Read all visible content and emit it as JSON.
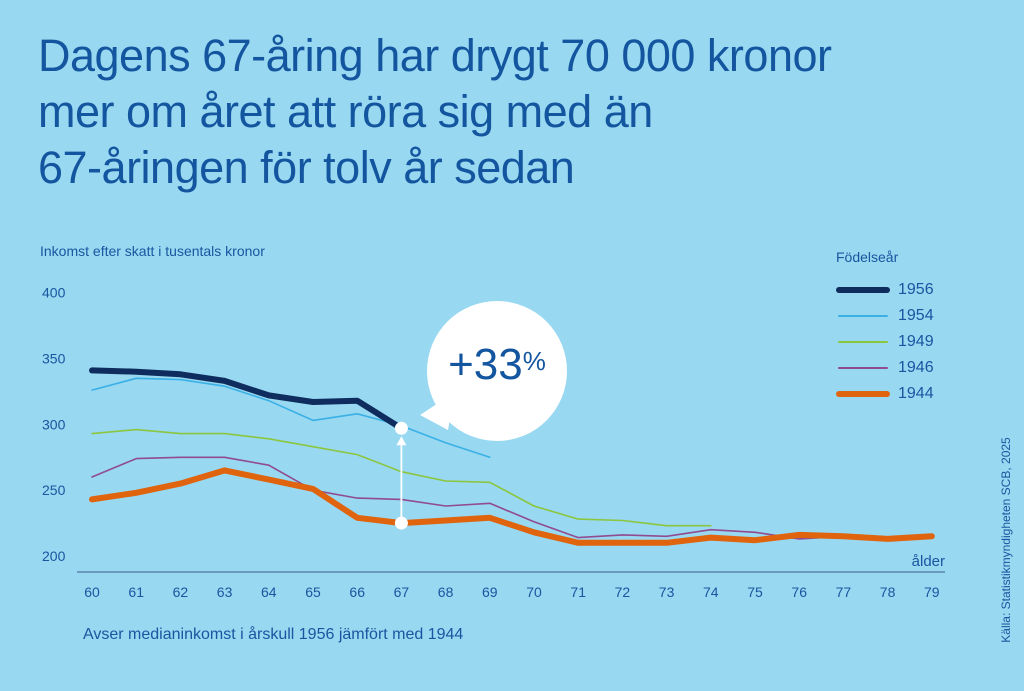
{
  "title_lines": [
    "Dagens 67-åring har drygt 70 000 kronor",
    "mer om året att röra sig med än",
    "67-åringen för tolv år sedan"
  ],
  "footnote": "Avser medianinkomst i årskull 1956 jämfört med 1944",
  "source": "Källa: Statistikmyndigheten SCB, 2025",
  "callout": {
    "value": "+33",
    "unit": "%"
  },
  "chart_data": {
    "type": "line",
    "title": "Dagens 67-åring har drygt 70 000 kronor mer om året att röra sig med än 67-åringen för tolv år sedan",
    "ylabel": "Inkomst efter skatt i tusentals kronor",
    "xlabel": "ålder",
    "legend_title": "Födelseår",
    "legend_position": "top-right",
    "grid": false,
    "ylim": [
      200,
      400
    ],
    "xlim": [
      60,
      79
    ],
    "yticks": [
      "400",
      "350",
      "300",
      "250",
      "200"
    ],
    "ytick_values": [
      400,
      350,
      300,
      250,
      200
    ],
    "x": [
      60,
      61,
      62,
      63,
      64,
      65,
      66,
      67,
      68,
      69,
      70,
      71,
      72,
      73,
      74,
      75,
      76,
      77,
      78,
      79
    ],
    "xticks": [
      "60",
      "61",
      "62",
      "63",
      "64",
      "65",
      "66",
      "67",
      "68",
      "69",
      "70",
      "71",
      "72",
      "73",
      "74",
      "75",
      "76",
      "77",
      "78",
      "79"
    ],
    "series": [
      {
        "name": "1956",
        "color": "#0e2d5e",
        "weight": "thick",
        "x": [
          60,
          61,
          62,
          63,
          64,
          65,
          66,
          67
        ],
        "values": [
          341,
          340,
          338,
          333,
          322,
          317,
          318,
          297
        ]
      },
      {
        "name": "1954",
        "color": "#3ab0e6",
        "weight": "thin",
        "x": [
          60,
          61,
          62,
          63,
          64,
          65,
          66,
          67,
          68,
          69
        ],
        "values": [
          326,
          335,
          334,
          329,
          318,
          303,
          308,
          299,
          286,
          275
        ]
      },
      {
        "name": "1949",
        "color": "#8cc63f",
        "weight": "thin",
        "x": [
          60,
          61,
          62,
          63,
          64,
          65,
          66,
          67,
          68,
          69,
          70,
          71,
          72,
          73,
          74
        ],
        "values": [
          293,
          296,
          293,
          293,
          289,
          283,
          277,
          264,
          257,
          256,
          238,
          228,
          227,
          223,
          223
        ]
      },
      {
        "name": "1946",
        "color": "#914b8f",
        "weight": "thin",
        "x": [
          60,
          61,
          62,
          63,
          64,
          65,
          66,
          67,
          68,
          69,
          70,
          71,
          72,
          73,
          74,
          75,
          76,
          77
        ],
        "values": [
          260,
          274,
          275,
          275,
          269,
          250,
          244,
          243,
          238,
          240,
          226,
          214,
          216,
          215,
          220,
          218,
          213,
          215
        ]
      },
      {
        "name": "1944",
        "color": "#e0640d",
        "weight": "thick",
        "x": [
          60,
          61,
          62,
          63,
          64,
          65,
          66,
          67,
          68,
          69,
          70,
          71,
          72,
          73,
          74,
          75,
          76,
          77,
          78,
          79
        ],
        "values": [
          243,
          248,
          255,
          265,
          258,
          251,
          229,
          225,
          227,
          229,
          218,
          210,
          210,
          210,
          214,
          212,
          216,
          215,
          213,
          215
        ]
      }
    ],
    "annotation": {
      "label": "+33%",
      "age": 67,
      "from_series": "1944",
      "to_series": "1956",
      "from": 225,
      "to": 297
    }
  }
}
